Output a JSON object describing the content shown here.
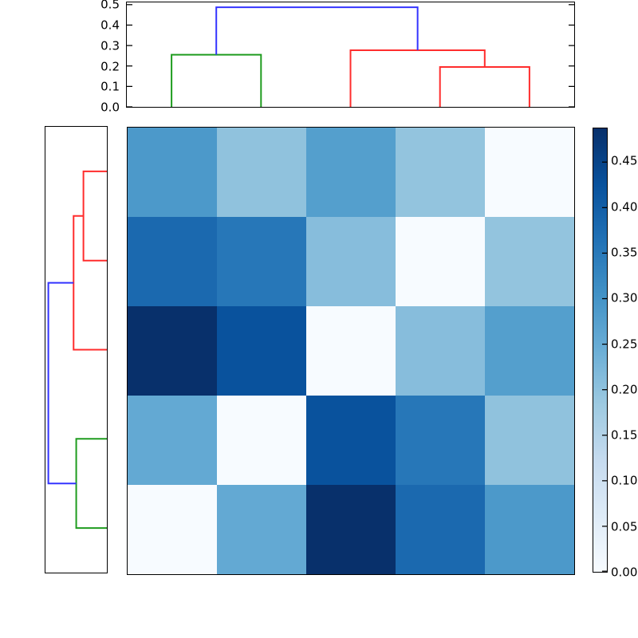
{
  "chart_data": {
    "type": "heatmap",
    "title": "",
    "description": "Hierarchically clustered 5x5 distance matrix with top and left dendrograms and a Blues colorbar; zeros lie on the anti-diagonal (column order is the reverse of row order).",
    "colormap": "Blues",
    "vmin": 0.0,
    "vmax": 0.487,
    "grid": "off",
    "matrix": [
      [
        0.29,
        0.2,
        0.277,
        0.195,
        0.0
      ],
      [
        0.38,
        0.355,
        0.21,
        0.0,
        0.195
      ],
      [
        0.487,
        0.425,
        0.0,
        0.21,
        0.277
      ],
      [
        0.255,
        0.0,
        0.425,
        0.355,
        0.2
      ],
      [
        0.0,
        0.255,
        0.487,
        0.38,
        0.29
      ]
    ],
    "cell_colors": [
      [
        "#4c99ca",
        "#90c2dd",
        "#549fcd",
        "#93c4de",
        "#f7fbff"
      ],
      [
        "#1b69af",
        "#2777b8",
        "#87bddc",
        "#f7fbff",
        "#93c4de"
      ],
      [
        "#08306b",
        "#09529d",
        "#f7fbff",
        "#87bddc",
        "#549fcd"
      ],
      [
        "#63a9d3",
        "#f7fbff",
        "#09529d",
        "#2777b8",
        "#90c2dd"
      ],
      [
        "#f7fbff",
        "#63a9d3",
        "#08306b",
        "#1b69af",
        "#4c99ca"
      ]
    ],
    "top_dendrogram": {
      "axis_max": 0.511,
      "ytick_labels": [
        "0.0",
        "0.1",
        "0.2",
        "0.3",
        "0.4",
        "0.5"
      ],
      "ytick_values": [
        0.0,
        0.1,
        0.2,
        0.3,
        0.4,
        0.5
      ],
      "links": [
        {
          "color": "#1f9c1f",
          "a_pos": 0.1,
          "a_h": 0.0,
          "b_pos": 0.3,
          "b_h": 0.0,
          "h": 0.255
        },
        {
          "color": "#ff2d2d",
          "a_pos": 0.7,
          "a_h": 0.0,
          "b_pos": 0.9,
          "b_h": 0.0,
          "h": 0.195
        },
        {
          "color": "#ff2d2d",
          "a_pos": 0.5,
          "a_h": 0.0,
          "b_pos": 0.8,
          "b_h": 0.195,
          "h": 0.277
        },
        {
          "color": "#3434ff",
          "a_pos": 0.2,
          "a_h": 0.255,
          "b_pos": 0.65,
          "b_h": 0.277,
          "h": 0.487
        }
      ]
    },
    "left_dendrogram": {
      "axis_max": 0.511,
      "links": [
        {
          "color": "#ff2d2d",
          "a_pos": 0.1,
          "a_h": 0.0,
          "b_pos": 0.3,
          "b_h": 0.0,
          "h": 0.195
        },
        {
          "color": "#ff2d2d",
          "a_pos": 0.2,
          "a_h": 0.195,
          "b_pos": 0.5,
          "b_h": 0.0,
          "h": 0.277
        },
        {
          "color": "#1f9c1f",
          "a_pos": 0.7,
          "a_h": 0.0,
          "b_pos": 0.9,
          "b_h": 0.0,
          "h": 0.255
        },
        {
          "color": "#3434ff",
          "a_pos": 0.35,
          "a_h": 0.277,
          "b_pos": 0.8,
          "b_h": 0.255,
          "h": 0.487
        }
      ]
    },
    "colorbar": {
      "vmin": 0.0,
      "vmax": 0.487,
      "tick_labels": [
        "0.00",
        "0.05",
        "0.10",
        "0.15",
        "0.20",
        "0.25",
        "0.30",
        "0.35",
        "0.40",
        "0.45"
      ],
      "tick_values": [
        0.0,
        0.05,
        0.1,
        0.15,
        0.2,
        0.25,
        0.3,
        0.35,
        0.4,
        0.45
      ],
      "gradient_stops": [
        {
          "frac": 0.0,
          "color": "#f7fbff"
        },
        {
          "frac": 0.125,
          "color": "#deebf7"
        },
        {
          "frac": 0.25,
          "color": "#c6dbef"
        },
        {
          "frac": 0.375,
          "color": "#9ecae1"
        },
        {
          "frac": 0.5,
          "color": "#6baed6"
        },
        {
          "frac": 0.625,
          "color": "#4292c6"
        },
        {
          "frac": 0.75,
          "color": "#2171b5"
        },
        {
          "frac": 0.875,
          "color": "#08519c"
        },
        {
          "frac": 1.0,
          "color": "#08306b"
        }
      ]
    },
    "dendrogram_merge_heights": [
      0.195,
      0.255,
      0.277,
      0.487
    ],
    "line_colors": {
      "cluster1": "#1f9c1f",
      "cluster2": "#ff2d2d",
      "root": "#3434ff"
    }
  }
}
